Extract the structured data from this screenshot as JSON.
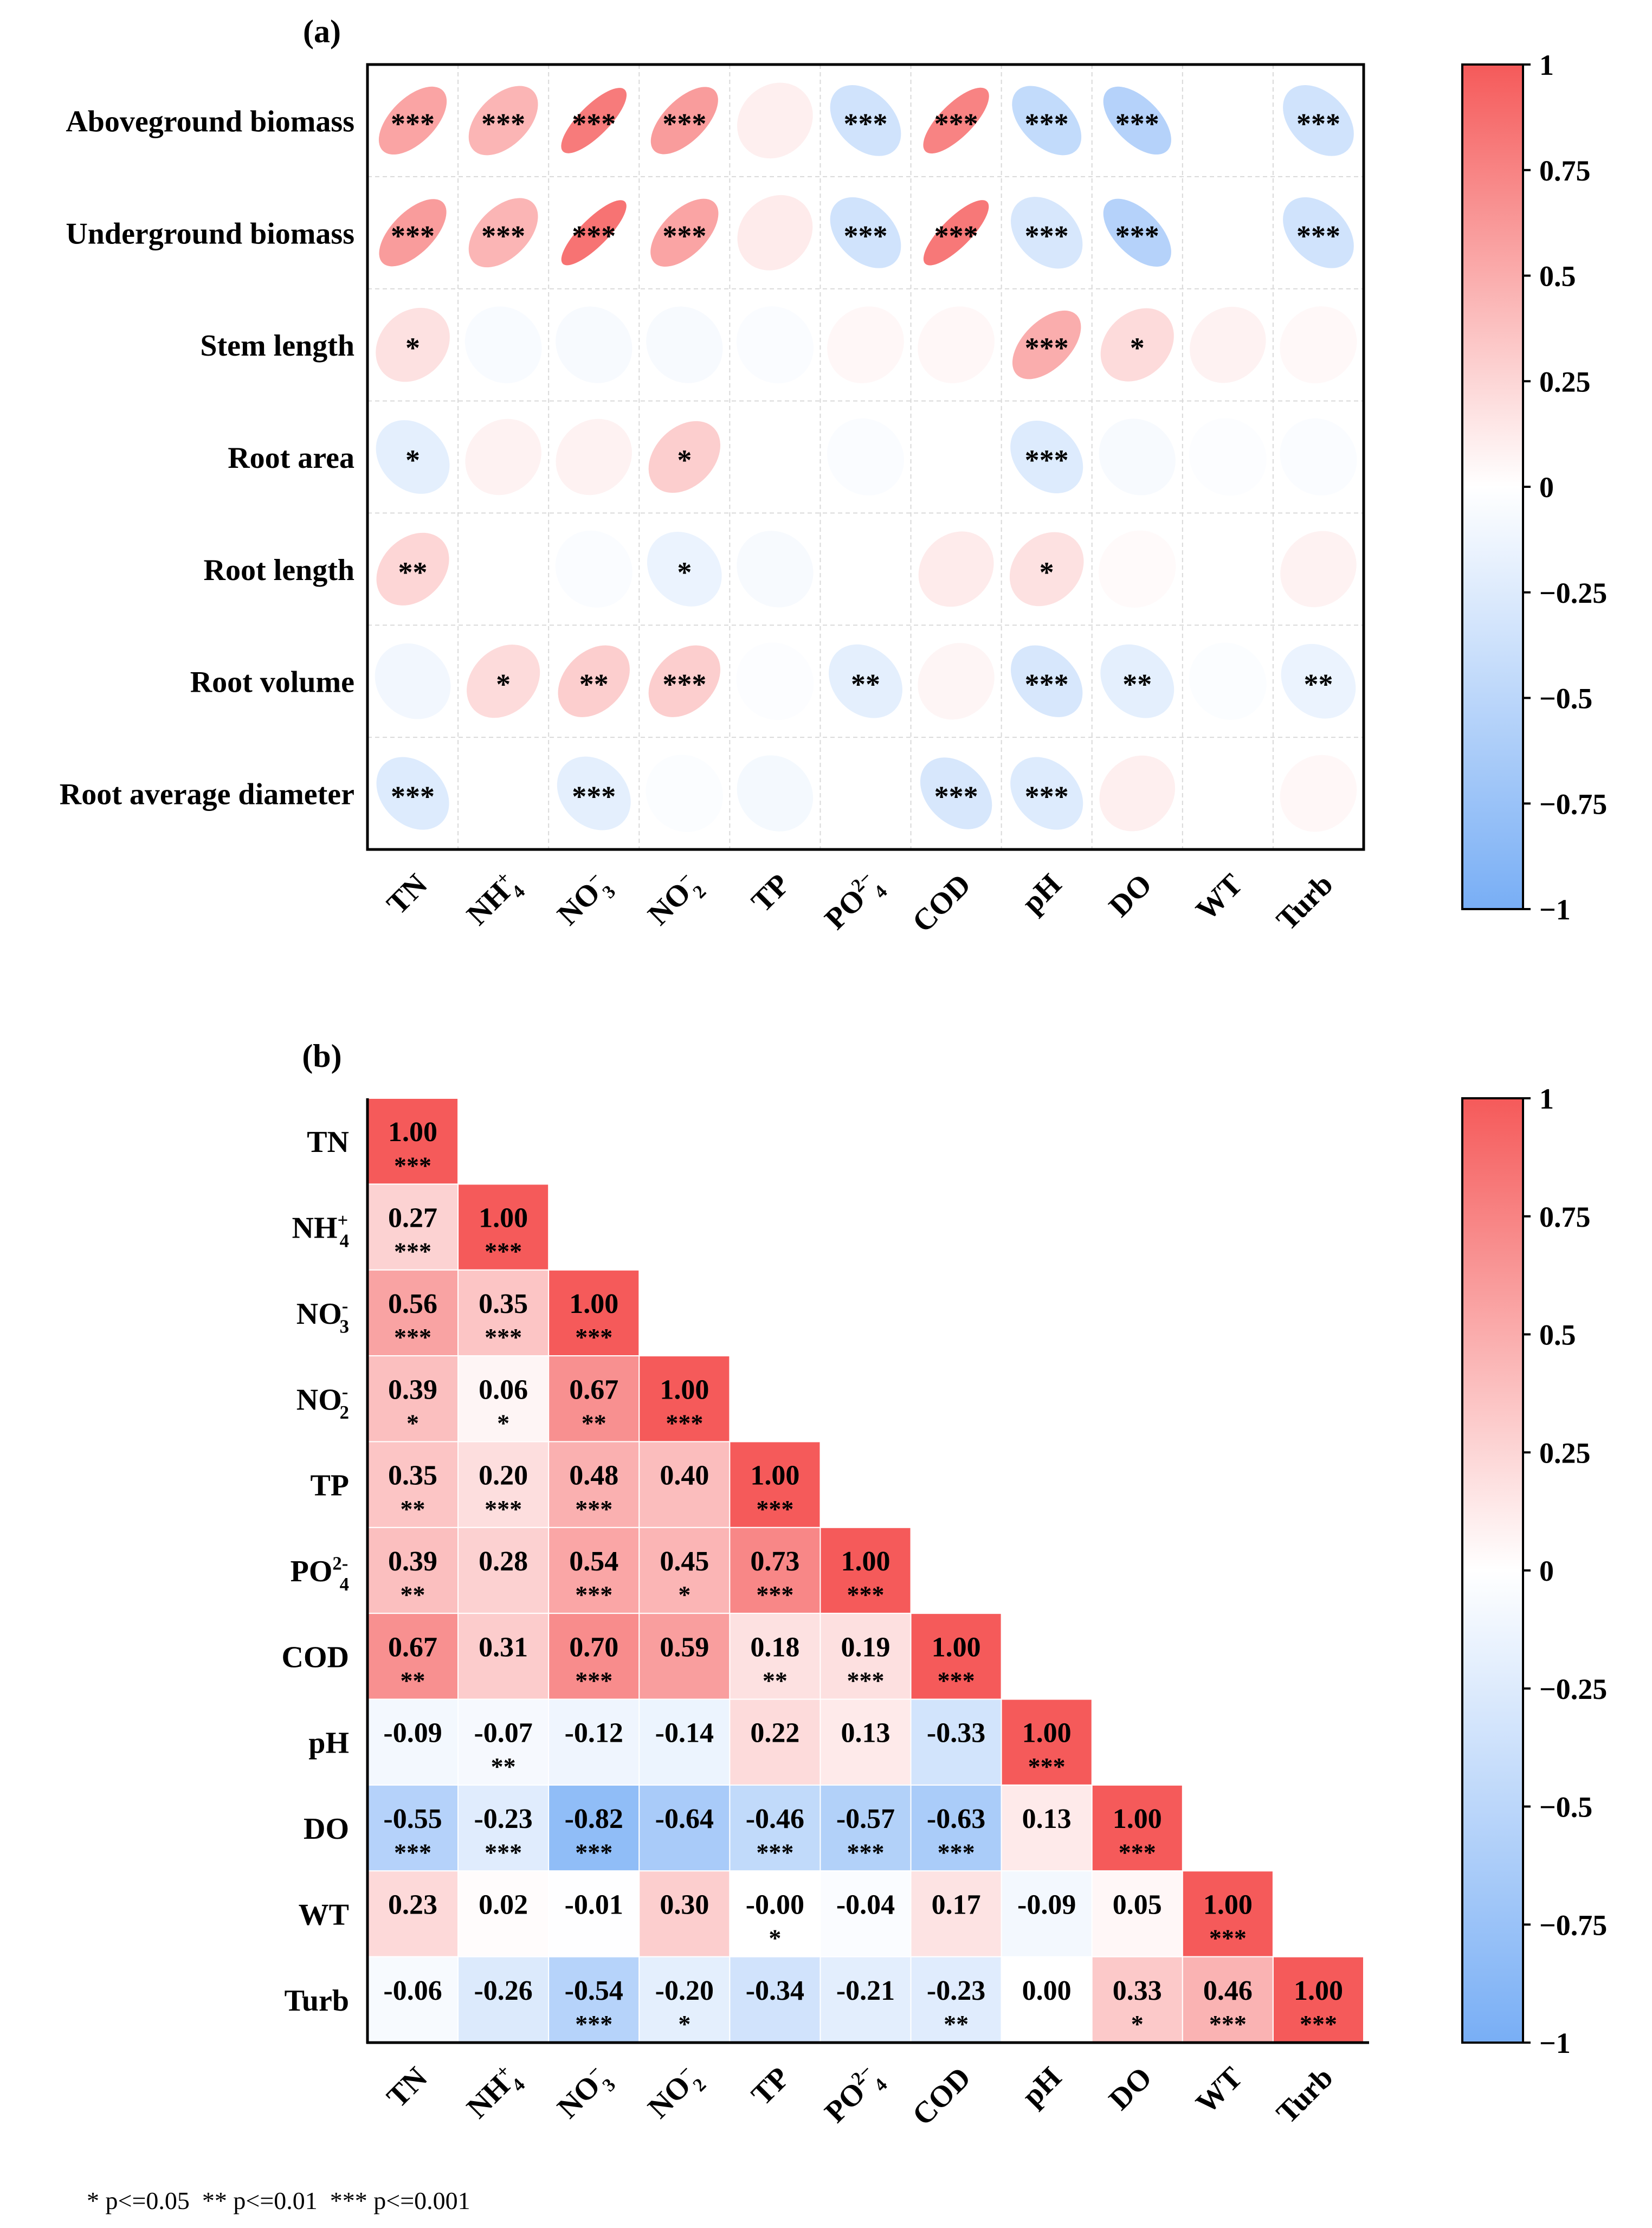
{
  "chart_data": [
    {
      "type": "heatmap",
      "panel_label": "(a)",
      "rows": [
        "Aboveground biomass",
        "Underground biomass",
        "Stem length",
        "Root area",
        "Root length",
        "Root volume",
        "Root average diameter"
      ],
      "columns": [
        {
          "base": "TN",
          "sup": "",
          "sub": ""
        },
        {
          "base": "NH",
          "sup": "+",
          "sub": "4"
        },
        {
          "base": "NO",
          "sup": "−",
          "sub": "3"
        },
        {
          "base": "NO",
          "sup": "−",
          "sub": "2"
        },
        {
          "base": "TP",
          "sup": "",
          "sub": ""
        },
        {
          "base": "PO",
          "sup": "2−",
          "sub": "4"
        },
        {
          "base": "COD",
          "sup": "",
          "sub": ""
        },
        {
          "base": "pH",
          "sup": "",
          "sub": ""
        },
        {
          "base": "DO",
          "sup": "",
          "sub": ""
        },
        {
          "base": "WT",
          "sup": "",
          "sub": ""
        },
        {
          "base": "Turb",
          "sup": "",
          "sub": ""
        }
      ],
      "values": [
        [
          0.55,
          0.45,
          0.8,
          0.6,
          0.1,
          -0.35,
          0.75,
          -0.45,
          -0.55,
          0.0,
          -0.35
        ],
        [
          0.6,
          0.45,
          0.85,
          0.55,
          0.12,
          -0.35,
          0.82,
          -0.3,
          -0.55,
          0.0,
          -0.35
        ],
        [
          0.18,
          -0.05,
          -0.06,
          -0.06,
          -0.04,
          0.05,
          0.05,
          0.5,
          0.22,
          0.08,
          0.04
        ],
        [
          -0.2,
          0.08,
          0.08,
          0.3,
          0.0,
          -0.04,
          0.0,
          -0.25,
          -0.06,
          -0.02,
          -0.04
        ],
        [
          0.25,
          0.0,
          -0.04,
          -0.15,
          -0.06,
          0.0,
          0.12,
          0.18,
          0.03,
          0.0,
          0.08
        ],
        [
          -0.1,
          0.22,
          0.3,
          0.3,
          -0.02,
          -0.2,
          0.06,
          -0.3,
          -0.2,
          -0.03,
          -0.15
        ],
        [
          -0.25,
          0.0,
          -0.2,
          -0.03,
          -0.08,
          0.0,
          -0.3,
          -0.25,
          0.1,
          0.0,
          0.05
        ]
      ],
      "significance": [
        [
          "***",
          "***",
          "***",
          "***",
          "",
          "***",
          "***",
          "***",
          "***",
          "",
          "***"
        ],
        [
          "***",
          "***",
          "***",
          "***",
          "",
          "***",
          "***",
          "***",
          "***",
          "",
          "***"
        ],
        [
          "*",
          "",
          "",
          "",
          "",
          "",
          "",
          "***",
          "*",
          "",
          ""
        ],
        [
          "*",
          "",
          "",
          "*",
          "",
          "",
          "",
          "***",
          "",
          "",
          ""
        ],
        [
          "**",
          "",
          "",
          "*",
          "",
          "",
          "",
          "*",
          "",
          "",
          ""
        ],
        [
          "",
          "*",
          "**",
          "***",
          "",
          "**",
          "",
          "***",
          "**",
          "",
          "**"
        ],
        [
          "***",
          "",
          "***",
          "",
          "",
          "",
          "***",
          "***",
          "",
          "",
          ""
        ]
      ],
      "colorbar": {
        "min": -1,
        "max": 1,
        "ticks": [
          "1",
          "0.75",
          "0.5",
          "0.25",
          "0",
          "−0.25",
          "−0.5",
          "−0.75",
          "−1"
        ],
        "colors": {
          "negative": "#78aef5",
          "zero": "#ffffff",
          "positive": "#f55a5a"
        }
      }
    },
    {
      "type": "heatmap",
      "panel_label": "(b)",
      "rows": [
        {
          "base": "TN",
          "sup": "",
          "sub": ""
        },
        {
          "base": "NH",
          "sup": "+",
          "sub": "4"
        },
        {
          "base": "NO",
          "sup": "-",
          "sub": "3"
        },
        {
          "base": "NO",
          "sup": "-",
          "sub": "2"
        },
        {
          "base": "TP",
          "sup": "",
          "sub": ""
        },
        {
          "base": "PO",
          "sup": "2-",
          "sub": "4"
        },
        {
          "base": "COD",
          "sup": "",
          "sub": ""
        },
        {
          "base": "pH",
          "sup": "",
          "sub": ""
        },
        {
          "base": "DO",
          "sup": "",
          "sub": ""
        },
        {
          "base": "WT",
          "sup": "",
          "sub": ""
        },
        {
          "base": "Turb",
          "sup": "",
          "sub": ""
        }
      ],
      "columns": [
        {
          "base": "TN",
          "sup": "",
          "sub": ""
        },
        {
          "base": "NH",
          "sup": "+",
          "sub": "4"
        },
        {
          "base": "NO",
          "sup": "−",
          "sub": "3"
        },
        {
          "base": "NO",
          "sup": "−",
          "sub": "2"
        },
        {
          "base": "TP",
          "sup": "",
          "sub": ""
        },
        {
          "base": "PO",
          "sup": "2−",
          "sub": "4"
        },
        {
          "base": "COD",
          "sup": "",
          "sub": ""
        },
        {
          "base": "pH",
          "sup": "",
          "sub": ""
        },
        {
          "base": "DO",
          "sup": "",
          "sub": ""
        },
        {
          "base": "WT",
          "sup": "",
          "sub": ""
        },
        {
          "base": "Turb",
          "sup": "",
          "sub": ""
        }
      ],
      "labels": [
        [
          "1.00"
        ],
        [
          "0.27",
          "1.00"
        ],
        [
          "0.56",
          "0.35",
          "1.00"
        ],
        [
          "0.39",
          "0.06",
          "0.67",
          "1.00"
        ],
        [
          "0.35",
          "0.20",
          "0.48",
          "0.40",
          "1.00"
        ],
        [
          "0.39",
          "0.28",
          "0.54",
          "0.45",
          "0.73",
          "1.00"
        ],
        [
          "0.67",
          "0.31",
          "0.70",
          "0.59",
          "0.18",
          "0.19",
          "1.00"
        ],
        [
          "-0.09",
          "-0.07",
          "-0.12",
          "-0.14",
          "0.22",
          "0.13",
          "-0.33",
          "1.00"
        ],
        [
          "-0.55",
          "-0.23",
          "-0.82",
          "-0.64",
          "-0.46",
          "-0.57",
          "-0.63",
          "0.13",
          "1.00"
        ],
        [
          "0.23",
          "0.02",
          "-0.01",
          "0.30",
          "-0.00",
          "-0.04",
          "0.17",
          "-0.09",
          "0.05",
          "1.00"
        ],
        [
          "-0.06",
          "-0.26",
          "-0.54",
          "-0.20",
          "-0.34",
          "-0.21",
          "-0.23",
          "0.00",
          "0.33",
          "0.46",
          "1.00"
        ]
      ],
      "significance": [
        [
          "***"
        ],
        [
          "***",
          "***"
        ],
        [
          "***",
          "***",
          "***"
        ],
        [
          "*",
          "*",
          "**",
          "***"
        ],
        [
          "**",
          "***",
          "***",
          "",
          "***"
        ],
        [
          "**",
          "",
          "***",
          "*",
          "***",
          "***"
        ],
        [
          "**",
          "",
          "***",
          "",
          "**",
          "***",
          "***"
        ],
        [
          "",
          "**",
          "",
          "",
          "",
          "",
          "",
          "***"
        ],
        [
          "***",
          "***",
          "***",
          "",
          "***",
          "***",
          "***",
          "",
          "***"
        ],
        [
          "",
          "",
          "",
          "",
          "*",
          "",
          "",
          "",
          "",
          "***"
        ],
        [
          "",
          "",
          "***",
          "*",
          "",
          "",
          "**",
          "",
          "*",
          "***",
          "***"
        ]
      ],
      "colorbar": {
        "min": -1,
        "max": 1,
        "ticks": [
          "1",
          "0.75",
          "0.5",
          "0.25",
          "0",
          "−0.25",
          "−0.5",
          "−0.75",
          "−1"
        ],
        "colors": {
          "negative": "#78aef5",
          "zero": "#ffffff",
          "positive": "#f55a5a"
        }
      }
    }
  ],
  "footnote": "* p<=0.05  ** p<=0.01  *** p<=0.001"
}
